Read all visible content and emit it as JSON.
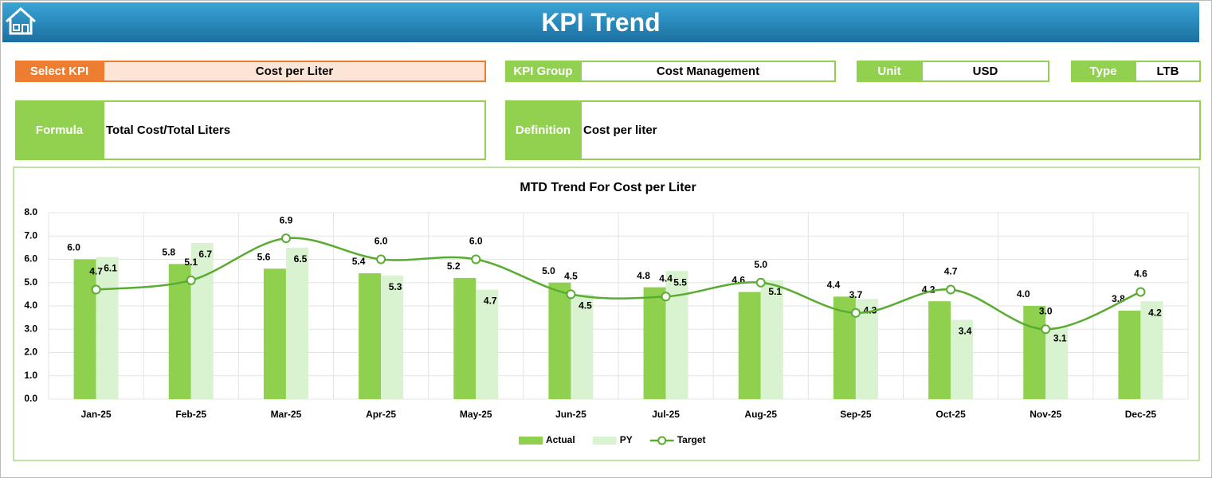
{
  "header": {
    "title": "KPI Trend"
  },
  "fields": [
    {
      "label": "Select KPI",
      "value": "Cost per Liter"
    },
    {
      "label": "KPI Group",
      "value": "Cost Management"
    },
    {
      "label": "Unit",
      "value": "USD"
    },
    {
      "label": "Type",
      "value": "LTB"
    },
    {
      "label": "Formula",
      "value": "Total Cost/Total Liters"
    },
    {
      "label": "Definition",
      "value": "Cost per liter"
    }
  ],
  "chart_data": {
    "type": "bar-line",
    "title": "MTD Trend For Cost per Liter",
    "categories": [
      "Jan-25",
      "Feb-25",
      "Mar-25",
      "Apr-25",
      "May-25",
      "Jun-25",
      "Jul-25",
      "Aug-25",
      "Sep-25",
      "Oct-25",
      "Nov-25",
      "Dec-25"
    ],
    "series": [
      {
        "name": "Actual",
        "type": "bar",
        "color": "#8fd14f",
        "values": [
          6.0,
          5.8,
          5.6,
          5.4,
          5.2,
          5.0,
          4.8,
          4.6,
          4.4,
          4.2,
          4.0,
          3.8
        ],
        "value_labels": [
          "6.0",
          "5.8",
          "5.6",
          "5.4",
          "5.2",
          "5.0",
          "4.8",
          "4.6",
          "4.4",
          "4.2",
          "4.0",
          "3.8"
        ]
      },
      {
        "name": "PY",
        "type": "bar",
        "color": "#d9f2d0",
        "values": [
          6.1,
          6.7,
          6.5,
          5.3,
          4.7,
          4.5,
          5.5,
          5.1,
          4.3,
          3.4,
          3.1,
          4.2
        ],
        "value_labels": [
          "6.1",
          "6.7",
          "6.5",
          "5.3",
          "4.7",
          "4.5",
          "5.5",
          "5.1",
          "4.3",
          "3.4",
          "3.1",
          "4.2"
        ]
      },
      {
        "name": "Target",
        "type": "line",
        "color": "#5aab32",
        "values": [
          4.7,
          5.1,
          6.9,
          6.0,
          6.0,
          4.5,
          4.4,
          5.0,
          3.7,
          4.7,
          3.0,
          4.6
        ],
        "value_labels": [
          "4.7",
          "5.1",
          "6.9",
          "6.0",
          "6.0",
          "4.5",
          "4.4",
          "5.0",
          "3.7",
          "4.7",
          "3.0",
          "4.6"
        ]
      }
    ],
    "ylim": [
      0,
      8
    ],
    "yticks": [
      {
        "value": 0,
        "label": "0.0"
      },
      {
        "value": 1,
        "label": "1.0"
      },
      {
        "value": 2,
        "label": "2.0"
      },
      {
        "value": 3,
        "label": "3.0"
      },
      {
        "value": 4,
        "label": "4.0"
      },
      {
        "value": 5,
        "label": "5.0"
      },
      {
        "value": 6,
        "label": "6.0"
      },
      {
        "value": 7,
        "label": "7.0"
      },
      {
        "value": 8,
        "label": "8.0"
      }
    ],
    "grid": true,
    "legend": "bottom"
  }
}
